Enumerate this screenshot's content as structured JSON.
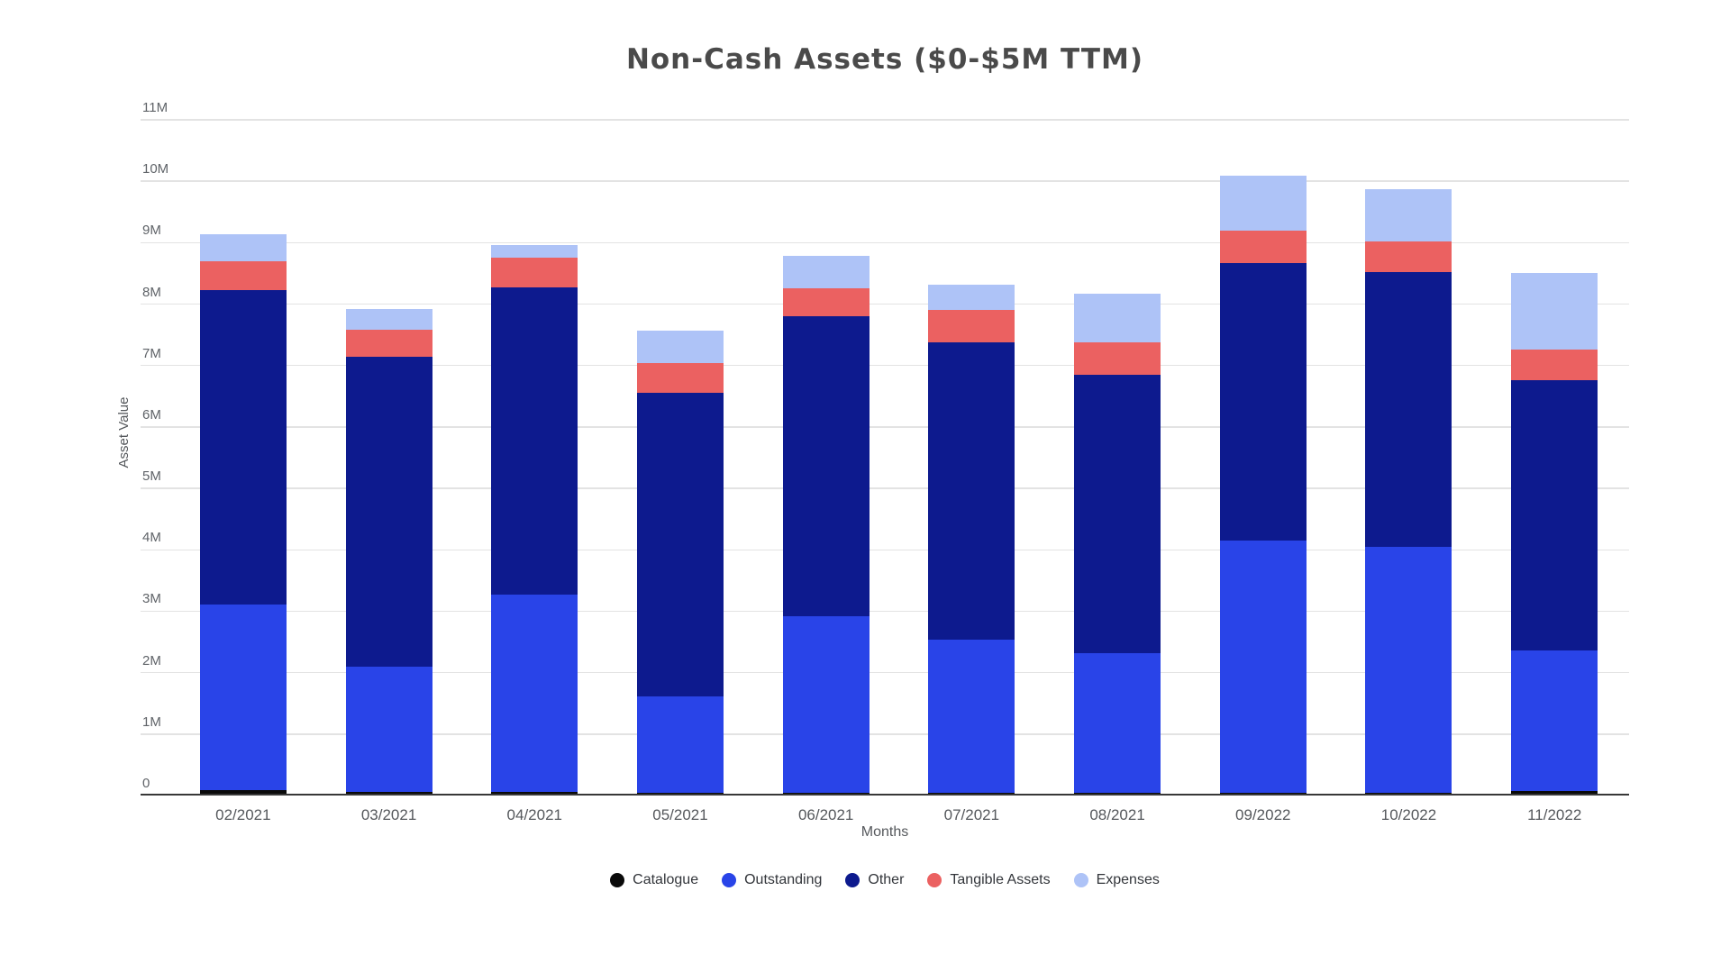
{
  "chart_data": {
    "type": "bar",
    "stacked": true,
    "title": "Non-Cash Assets ($0-$5M TTM)",
    "xlabel": "Months",
    "ylabel": "Asset Value",
    "unit": "millions",
    "ylim": [
      0,
      11000000
    ],
    "grid": true,
    "legend_position": "bottom",
    "y_ticks": {
      "values": [
        0,
        1,
        2,
        3,
        4,
        5,
        6,
        7,
        8,
        9,
        10,
        11
      ],
      "labels": [
        "0",
        "1M",
        "2M",
        "3M",
        "4M",
        "5M",
        "6M",
        "7M",
        "8M",
        "9M",
        "10M",
        "11M"
      ]
    },
    "categories": [
      "02/2021",
      "03/2021",
      "04/2021",
      "05/2021",
      "06/2021",
      "07/2021",
      "08/2021",
      "09/2022",
      "10/2022",
      "11/2022"
    ],
    "series": [
      {
        "name": "Catalogue",
        "color": "#0a0a0a",
        "values_m": [
          0.08,
          0.04,
          0.04,
          0.03,
          0.03,
          0.03,
          0.03,
          0.03,
          0.03,
          0.06
        ]
      },
      {
        "name": "Outstanding",
        "color": "#2944e8",
        "values_m": [
          3.02,
          2.04,
          3.22,
          1.57,
          2.88,
          2.49,
          2.27,
          4.11,
          4.01,
          2.28
        ]
      },
      {
        "name": "Other",
        "color": "#0d1a8e",
        "values_m": [
          5.11,
          5.05,
          5.0,
          4.94,
          4.88,
          4.84,
          4.53,
          4.51,
          4.47,
          4.4
        ]
      },
      {
        "name": "Tangible Assets",
        "color": "#eb6161",
        "values_m": [
          0.47,
          0.44,
          0.48,
          0.49,
          0.46,
          0.53,
          0.53,
          0.53,
          0.49,
          0.5
        ]
      },
      {
        "name": "Expenses",
        "color": "#aec3f7",
        "values_m": [
          0.44,
          0.34,
          0.21,
          0.53,
          0.52,
          0.41,
          0.8,
          0.89,
          0.86,
          1.25
        ]
      }
    ],
    "totals_m": [
      9.12,
      7.91,
      8.95,
      7.56,
      8.77,
      8.3,
      8.16,
      10.07,
      9.86,
      8.49
    ],
    "colors": {
      "gridline": "#e3e3e3",
      "axis_line": "#383838",
      "title_text": "#4a4a4a",
      "tick_text": "#5f6368"
    }
  }
}
